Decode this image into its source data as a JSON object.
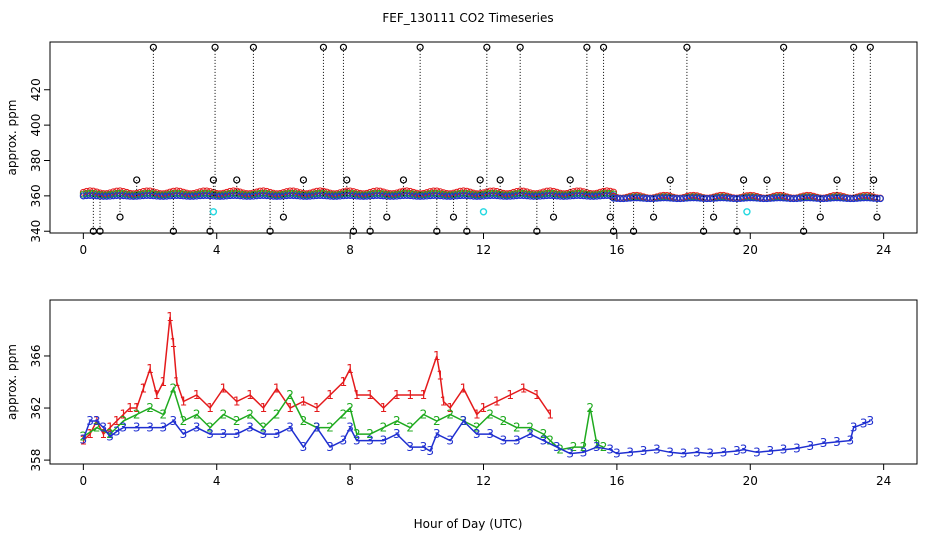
{
  "figure_title": "FEF_130111  CO2 Timeseries",
  "shared_xlabel": "Hour of Day (UTC)",
  "colors": {
    "black": "#000000",
    "red": "#e41a1c",
    "green": "#1faa1f",
    "blue": "#1f2fd0",
    "cyan": "#22d8e0"
  },
  "chart_data": [
    {
      "type": "scatter",
      "title": "FEF_130111  CO2 Timeseries",
      "xlabel": "",
      "ylabel": "approx. ppm",
      "xlim": [
        -1,
        25
      ],
      "ylim": [
        339,
        447
      ],
      "xticks": [
        "0",
        "4",
        "8",
        "12",
        "16",
        "20",
        "24"
      ],
      "yticks": [
        "340",
        "360",
        "380",
        "400",
        "420"
      ],
      "ytick_values": [
        340,
        360,
        380,
        400,
        420
      ],
      "series": [
        {
          "name": "black spikes",
          "color": "#000000",
          "x": [
            0.3,
            0.5,
            1.1,
            1.6,
            2.1,
            2.7,
            3.8,
            3.9,
            3.95,
            4.6,
            5.1,
            5.6,
            6.0,
            6.6,
            7.2,
            7.8,
            7.9,
            8.1,
            8.6,
            9.1,
            9.6,
            10.1,
            10.6,
            11.1,
            11.5,
            11.9,
            12.1,
            12.5,
            13.1,
            13.6,
            14.1,
            14.6,
            15.1,
            15.6,
            15.8,
            15.9,
            16.5,
            17.1,
            17.6,
            18.1,
            18.6,
            18.9,
            19.6,
            19.8,
            20.5,
            21.0,
            21.6,
            22.1,
            22.6,
            23.1,
            23.6,
            23.7,
            23.8
          ],
          "values": [
            340,
            340,
            348,
            369,
            444,
            340,
            340,
            369,
            444,
            369,
            444,
            340,
            348,
            369,
            444,
            444,
            369,
            340,
            340,
            348,
            369,
            444,
            340,
            348,
            340,
            369,
            444,
            369,
            444,
            340,
            348,
            369,
            444,
            444,
            348,
            340,
            340,
            348,
            369,
            444,
            340,
            348,
            340,
            369,
            369,
            444,
            340,
            348,
            369,
            444,
            444,
            369,
            348
          ]
        },
        {
          "name": "cyan",
          "color": "#22d8e0",
          "x": [
            3.9,
            12.0,
            19.9
          ],
          "values": [
            351,
            351,
            351
          ]
        }
      ]
    },
    {
      "type": "line",
      "title": "",
      "xlabel": "Hour of Day (UTC)",
      "ylabel": "approx. ppm",
      "xlim": [
        -1,
        25
      ],
      "ylim": [
        357.7,
        370.3
      ],
      "xticks": [
        "0",
        "4",
        "8",
        "12",
        "16",
        "20",
        "24"
      ],
      "yticks": [
        "358",
        "362",
        "366"
      ],
      "ytick_values": [
        358,
        362,
        366
      ],
      "series": [
        {
          "name": "1",
          "label": "1",
          "color": "#e41a1c",
          "x": [
            0.0,
            0.2,
            0.4,
            0.6,
            0.8,
            1.0,
            1.2,
            1.4,
            1.6,
            1.8,
            2.0,
            2.2,
            2.4,
            2.6,
            2.7,
            2.8,
            3.0,
            3.4,
            3.8,
            4.2,
            4.6,
            5.0,
            5.4,
            5.8,
            6.2,
            6.6,
            7.0,
            7.4,
            7.8,
            8.0,
            8.2,
            8.6,
            9.0,
            9.4,
            9.8,
            10.2,
            10.6,
            10.7,
            10.8,
            11.0,
            11.4,
            11.8,
            12.0,
            12.4,
            12.8,
            13.2,
            13.6,
            14.0
          ],
          "values": [
            359.5,
            360.0,
            361.0,
            360.0,
            360.5,
            361.0,
            361.5,
            362.0,
            362.0,
            363.5,
            365.0,
            363.0,
            364.0,
            369.0,
            367.0,
            364.0,
            362.5,
            363.0,
            362.0,
            363.5,
            362.5,
            363.0,
            362.0,
            363.5,
            362.0,
            362.5,
            362.0,
            363.0,
            364.0,
            365.0,
            363.0,
            363.0,
            362.0,
            363.0,
            363.0,
            363.0,
            366.0,
            364.5,
            362.5,
            362.0,
            363.5,
            361.5,
            362.0,
            362.5,
            363.0,
            363.5,
            363.0,
            361.5
          ]
        },
        {
          "name": "2",
          "label": "2",
          "color": "#1faa1f",
          "x": [
            0.0,
            0.4,
            0.8,
            1.2,
            1.6,
            2.0,
            2.4,
            2.7,
            3.0,
            3.4,
            3.8,
            4.2,
            4.6,
            5.0,
            5.4,
            5.8,
            6.2,
            6.6,
            7.0,
            7.4,
            7.8,
            8.0,
            8.2,
            8.6,
            9.0,
            9.4,
            9.8,
            10.2,
            10.6,
            11.0,
            11.4,
            11.8,
            12.2,
            12.6,
            13.0,
            13.4,
            13.8,
            14.0,
            14.3,
            14.7,
            15.0,
            15.2,
            15.4,
            15.6
          ],
          "values": [
            359.8,
            360.5,
            360.0,
            361.0,
            361.5,
            362.0,
            361.5,
            363.5,
            361.0,
            361.5,
            360.5,
            361.5,
            361.0,
            361.5,
            360.5,
            361.5,
            363.0,
            361.0,
            360.5,
            360.5,
            361.5,
            362.0,
            360.0,
            360.0,
            360.5,
            361.0,
            360.5,
            361.5,
            361.0,
            361.5,
            361.0,
            360.5,
            361.5,
            361.0,
            360.5,
            360.5,
            360.0,
            359.5,
            358.8,
            359.0,
            359.0,
            362.0,
            359.2,
            359.0
          ]
        },
        {
          "name": "3",
          "label": "3",
          "color": "#1f2fd0",
          "x": [
            0.0,
            0.2,
            0.4,
            0.6,
            0.8,
            1.0,
            1.2,
            1.6,
            2.0,
            2.4,
            2.7,
            3.0,
            3.4,
            3.8,
            4.2,
            4.6,
            5.0,
            5.4,
            5.8,
            6.2,
            6.6,
            7.0,
            7.4,
            7.8,
            8.0,
            8.2,
            8.6,
            9.0,
            9.4,
            9.8,
            10.2,
            10.4,
            10.6,
            11.0,
            11.4,
            11.8,
            12.2,
            12.6,
            13.0,
            13.4,
            13.8,
            14.2,
            14.6,
            15.0,
            15.4,
            15.8,
            16.0,
            16.4,
            16.8,
            17.2,
            17.6,
            18.0,
            18.4,
            18.8,
            19.2,
            19.6,
            19.8,
            20.2,
            20.6,
            21.0,
            21.4,
            21.8,
            22.2,
            22.6,
            23.0,
            23.1,
            23.4,
            23.6
          ],
          "values": [
            359.6,
            361.0,
            361.0,
            360.5,
            359.8,
            360.2,
            360.5,
            360.5,
            360.5,
            360.5,
            361.0,
            360.0,
            360.5,
            360.0,
            360.0,
            360.0,
            360.5,
            360.0,
            360.0,
            360.5,
            359.0,
            360.5,
            359.0,
            359.5,
            360.5,
            359.5,
            359.5,
            359.5,
            360.0,
            359.0,
            359.0,
            358.7,
            360.0,
            359.5,
            361.0,
            360.0,
            360.0,
            359.5,
            359.5,
            360.0,
            359.5,
            359.0,
            358.5,
            358.6,
            359.0,
            358.8,
            358.5,
            358.6,
            358.7,
            358.8,
            358.6,
            358.5,
            358.6,
            358.5,
            358.6,
            358.7,
            358.8,
            358.6,
            358.7,
            358.8,
            358.9,
            359.1,
            359.3,
            359.4,
            359.5,
            360.5,
            360.8,
            361.0
          ]
        }
      ]
    }
  ]
}
